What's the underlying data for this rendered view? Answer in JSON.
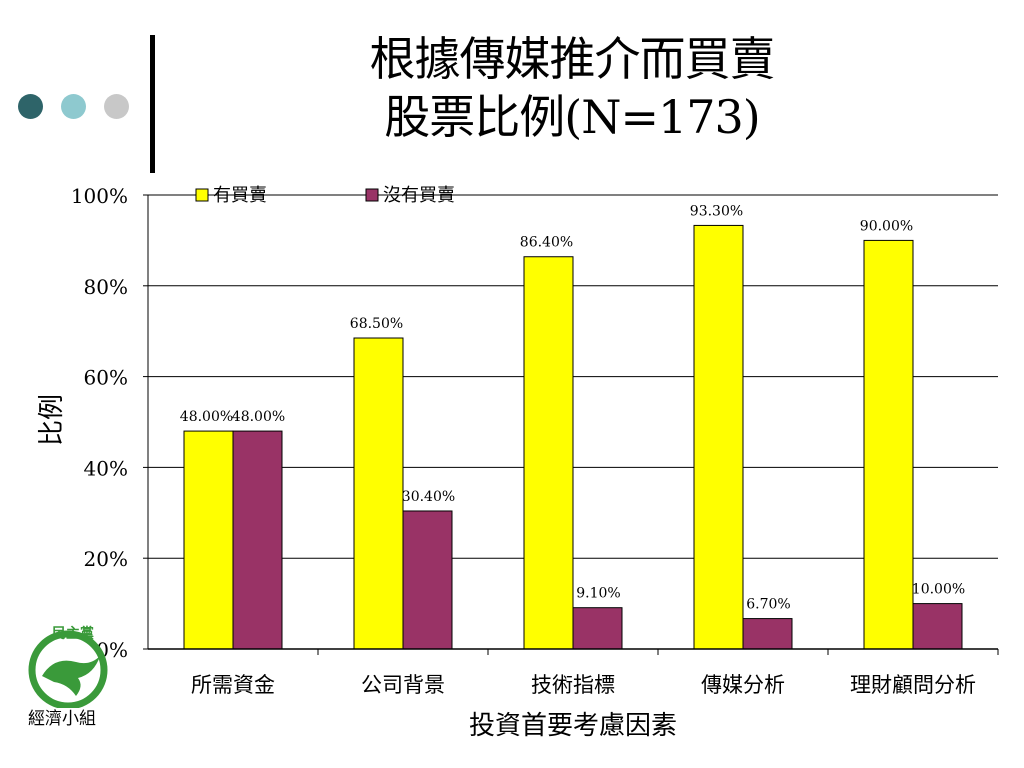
{
  "colors": {
    "dot1": "#2e6469",
    "dot2": "#8ec9cf",
    "dot3": "#c8c8c8",
    "series1": "#ffff00",
    "series2": "#993366",
    "logo_green": "#3a9a3a"
  },
  "title": {
    "line1": "根據傳媒推介而買賣",
    "line2": "股票比例(N=173)"
  },
  "logo": {
    "text": "民主黨",
    "group_label": "經濟小組"
  },
  "chart_data": {
    "type": "bar",
    "categories": [
      "所需資金",
      "公司背景",
      "技術指標",
      "傳媒分析",
      "理財顧問分析"
    ],
    "series": [
      {
        "name": "有買賣",
        "values": [
          48.0,
          68.5,
          86.4,
          93.3,
          90.0
        ],
        "labels": [
          "48.00%",
          "68.50%",
          "86.40%",
          "93.30%",
          "90.00%"
        ]
      },
      {
        "name": "沒有買賣",
        "values": [
          48.0,
          30.4,
          9.1,
          6.7,
          10.0
        ],
        "labels": [
          "48.00%",
          "30.40%",
          "9.10%",
          "6.70%",
          "10.00%"
        ]
      }
    ],
    "ylim": [
      0,
      100
    ],
    "yticks": [
      "0%",
      "20%",
      "40%",
      "60%",
      "80%",
      "100%"
    ],
    "xlabel": "投資首要考慮因素",
    "ylabel": "比例",
    "grid": true,
    "legend": "top"
  }
}
